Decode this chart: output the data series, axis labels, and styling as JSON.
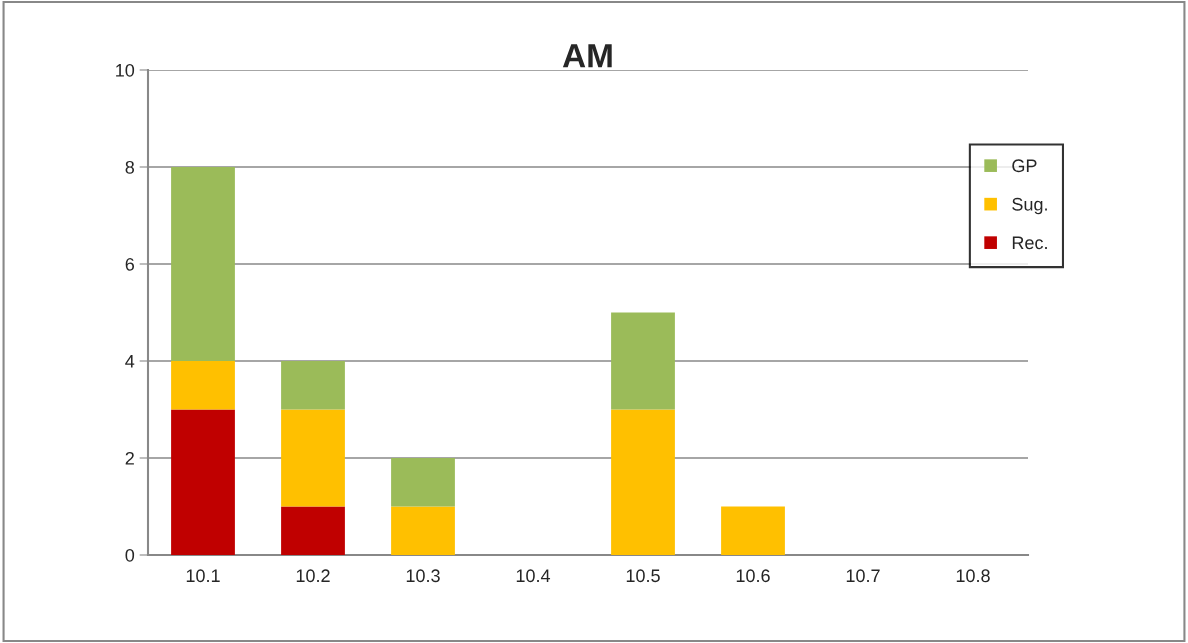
{
  "chart_data": {
    "type": "bar",
    "title": "AM",
    "stacked": true,
    "categories": [
      "10.1",
      "10.2",
      "10.3",
      "10.4",
      "10.5",
      "10.6",
      "10.7",
      "10.8"
    ],
    "series": [
      {
        "name": "Rec.",
        "color": "#c00000",
        "values": [
          3,
          1,
          0,
          0,
          0,
          0,
          0,
          0
        ]
      },
      {
        "name": "Sug.",
        "color": "#ffc000",
        "values": [
          1,
          2,
          1,
          0,
          3,
          1,
          0,
          0
        ]
      },
      {
        "name": "GP",
        "color": "#9bbb59",
        "values": [
          4,
          1,
          1,
          0,
          2,
          0,
          0,
          0
        ]
      }
    ],
    "ylim": [
      0,
      10
    ],
    "yticks": [
      0,
      2,
      4,
      6,
      8,
      10
    ],
    "grid": "y",
    "legend": "right"
  }
}
